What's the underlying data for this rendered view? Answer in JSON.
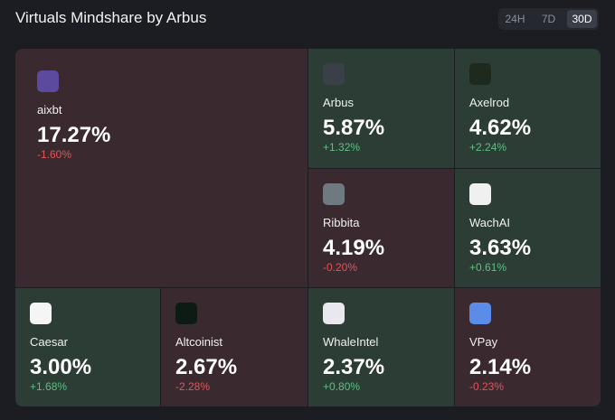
{
  "header": {
    "title": "Virtuals Mindshare by Arbus",
    "tabs": [
      "24H",
      "7D",
      "30D"
    ],
    "active_tab": 2
  },
  "tiles": [
    {
      "name": "aixbt",
      "share": "17.27%",
      "change": "-1.60%",
      "trend": "down"
    },
    {
      "name": "Arbus",
      "share": "5.87%",
      "change": "+1.32%",
      "trend": "up"
    },
    {
      "name": "Axelrod",
      "share": "4.62%",
      "change": "+2.24%",
      "trend": "up"
    },
    {
      "name": "Ribbita",
      "share": "4.19%",
      "change": "-0.20%",
      "trend": "down"
    },
    {
      "name": "WachAI",
      "share": "3.63%",
      "change": "+0.61%",
      "trend": "up"
    },
    {
      "name": "Caesar",
      "share": "3.00%",
      "change": "+1.68%",
      "trend": "up"
    },
    {
      "name": "Altcoinist",
      "share": "2.67%",
      "change": "-2.28%",
      "trend": "down"
    },
    {
      "name": "WhaleIntel",
      "share": "2.37%",
      "change": "+0.80%",
      "trend": "up"
    },
    {
      "name": "VPay",
      "share": "2.14%",
      "change": "-0.23%",
      "trend": "down"
    }
  ]
}
